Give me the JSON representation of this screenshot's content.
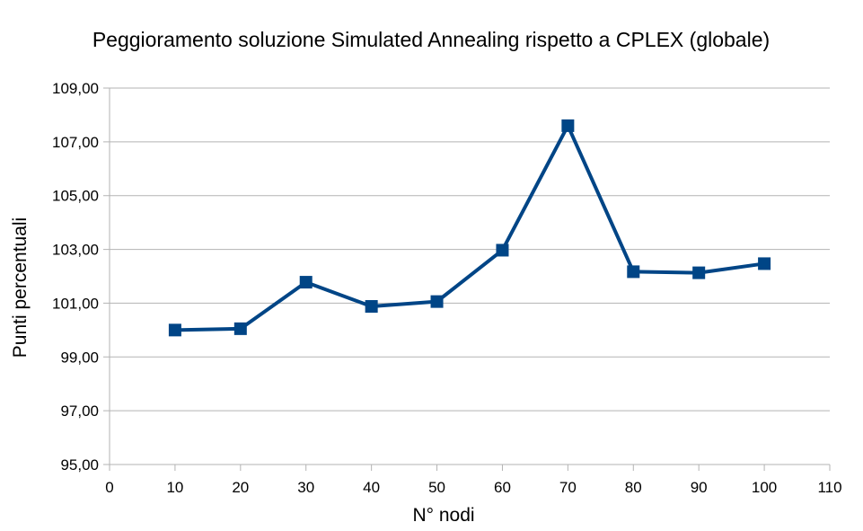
{
  "chart_data": {
    "type": "line",
    "title": "Peggioramento soluzione Simulated Annealing rispetto a CPLEX (globale)",
    "xlabel": "N° nodi",
    "ylabel": "Punti percentuali",
    "xlim": [
      0,
      110
    ],
    "ylim": [
      95,
      109
    ],
    "x_ticks": [
      "0",
      "10",
      "20",
      "30",
      "40",
      "50",
      "60",
      "70",
      "80",
      "90",
      "100",
      "110"
    ],
    "y_ticks": [
      "95,00",
      "97,00",
      "99,00",
      "101,00",
      "103,00",
      "105,00",
      "107,00",
      "109,00"
    ],
    "grid": "horizontal",
    "legend": "none",
    "series": [
      {
        "color": "#004586",
        "marker": "square",
        "x": [
          10,
          20,
          30,
          40,
          50,
          60,
          70,
          80,
          90,
          100
        ],
        "y": [
          100.0,
          100.05,
          101.78,
          100.88,
          101.06,
          102.97,
          107.6,
          102.17,
          102.13,
          102.47
        ]
      }
    ]
  }
}
